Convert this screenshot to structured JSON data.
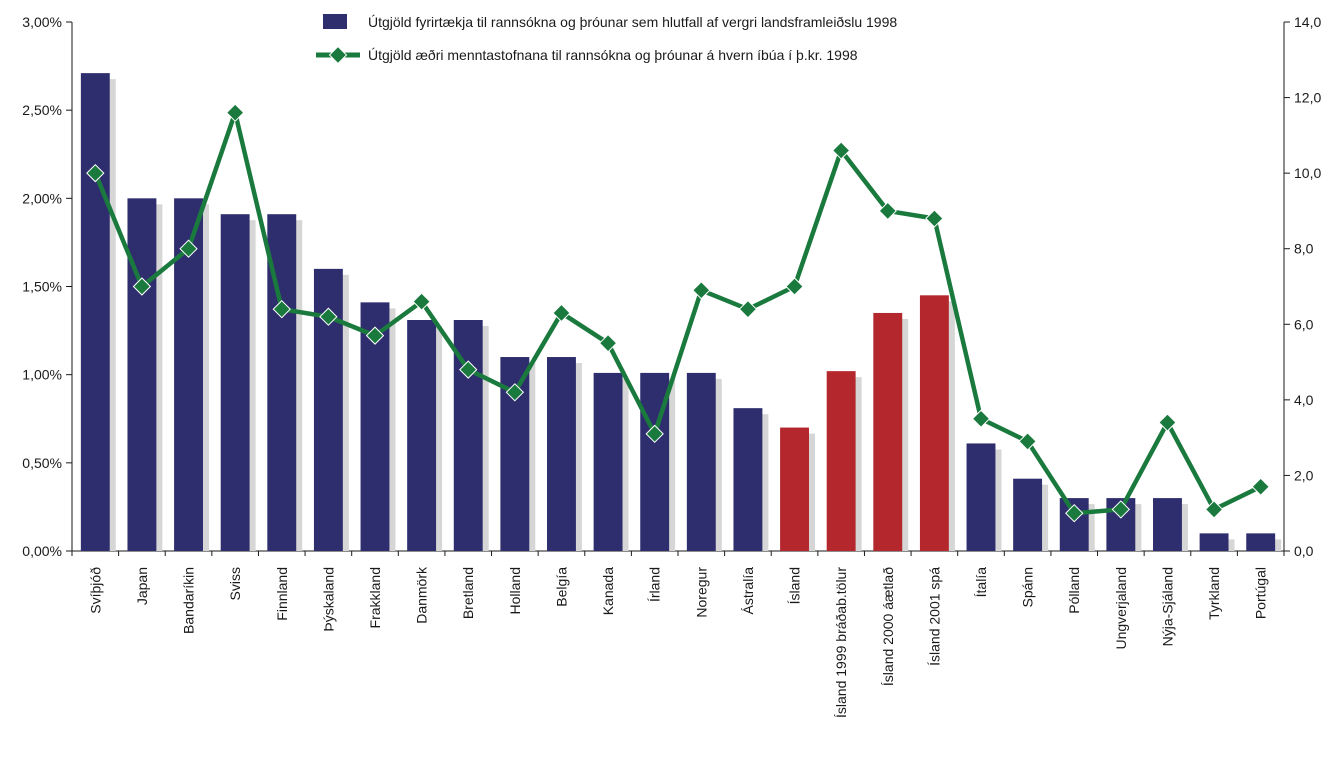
{
  "chart_data": {
    "type": "bar",
    "categories": [
      "Svíþjóð",
      "Japan",
      "Bandaríkin",
      "Sviss",
      "Finnland",
      "Þýskaland",
      "Frakkland",
      "Danmörk",
      "Bretland",
      "Holland",
      "Belgía",
      "Kanada",
      "Írland",
      "Noregur",
      "Ástralía",
      "Ísland",
      "Ísland 1999 bráðab.tölur",
      "Ísland 2000 áætlað",
      "Ísland 2001 spá",
      "Ítalía",
      "Spánn",
      "Pólland",
      "Ungverjaland",
      "Nýja-Sjáland",
      "Tyrkland",
      "Portúgal"
    ],
    "series": [
      {
        "name": "Útgjöld fyrirtækja til rannsókna og þróunar sem hlutfall af vergri landsframleiðslu 1998",
        "type": "bar",
        "axis": "left",
        "values": [
          2.71,
          2.0,
          2.0,
          1.91,
          1.91,
          1.6,
          1.41,
          1.31,
          1.31,
          1.1,
          1.1,
          1.01,
          1.01,
          1.01,
          0.81,
          0.7,
          1.02,
          1.35,
          1.45,
          0.61,
          0.41,
          0.3,
          0.3,
          0.3,
          0.1,
          0.1
        ],
        "colors": [
          "#2e2d6e",
          "#2e2d6e",
          "#2e2d6e",
          "#2e2d6e",
          "#2e2d6e",
          "#2e2d6e",
          "#2e2d6e",
          "#2e2d6e",
          "#2e2d6e",
          "#2e2d6e",
          "#2e2d6e",
          "#2e2d6e",
          "#2e2d6e",
          "#2e2d6e",
          "#2e2d6e",
          "#b3272d",
          "#b3272d",
          "#b3272d",
          "#b3272d",
          "#2e2d6e",
          "#2e2d6e",
          "#2e2d6e",
          "#2e2d6e",
          "#2e2d6e",
          "#2e2d6e",
          "#2e2d6e"
        ]
      },
      {
        "name": "Útgjöld æðri menntastofnana til rannsókna og þróunar á hvern íbúa í þ.kr. 1998",
        "type": "line",
        "axis": "right",
        "values": [
          10.0,
          7.0,
          8.0,
          11.6,
          6.4,
          6.2,
          5.7,
          6.6,
          4.8,
          4.2,
          6.3,
          5.5,
          3.1,
          6.9,
          6.4,
          7.0,
          10.6,
          9.0,
          8.8,
          3.5,
          2.9,
          1.0,
          1.1,
          3.4,
          1.1,
          1.7
        ],
        "color": "#1a7a3e"
      }
    ],
    "left_axis": {
      "ylim": [
        0,
        3.0
      ],
      "ticks": [
        "0,00%",
        "0,50%",
        "1,00%",
        "1,50%",
        "2,00%",
        "2,50%",
        "3,00%"
      ]
    },
    "right_axis": {
      "ylim": [
        0,
        14.0
      ],
      "ticks": [
        "0,0",
        "2,0",
        "4,0",
        "6,0",
        "8,0",
        "10,0",
        "12,0",
        "14,0"
      ]
    },
    "colors": {
      "bar": "#2e2d6e",
      "bar_iceland": "#b3272d",
      "bar_shadow": "#d6d6d6",
      "line": "#1a7a3e"
    },
    "legend_position": "top-center",
    "grid": false,
    "title": "",
    "xlabel": "",
    "ylabel": ""
  }
}
